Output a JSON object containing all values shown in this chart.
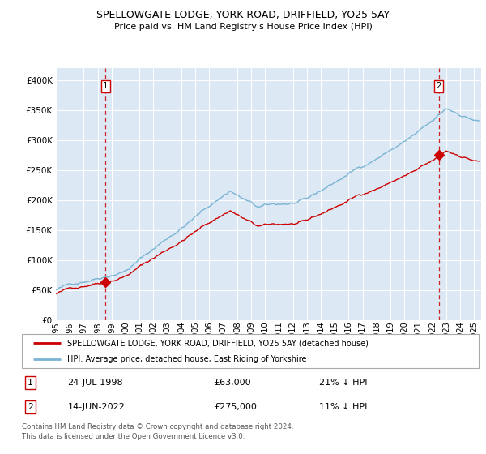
{
  "title": "SPELLOWGATE LODGE, YORK ROAD, DRIFFIELD, YO25 5AY",
  "subtitle": "Price paid vs. HM Land Registry's House Price Index (HPI)",
  "legend_line1": "SPELLOWGATE LODGE, YORK ROAD, DRIFFIELD, YO25 5AY (detached house)",
  "legend_line2": "HPI: Average price, detached house, East Riding of Yorkshire",
  "footnote": "Contains HM Land Registry data © Crown copyright and database right 2024.\nThis data is licensed under the Open Government Licence v3.0.",
  "sale1_date": "24-JUL-1998",
  "sale1_price": 63000,
  "sale1_hpi_diff": "21% ↓ HPI",
  "sale2_date": "14-JUN-2022",
  "sale2_price": 275000,
  "sale2_hpi_diff": "11% ↓ HPI",
  "sale1_x": 1998.56,
  "sale2_x": 2022.45,
  "hpi_color": "#7ab3d4",
  "price_color": "#cc0000",
  "bg_color": "#dce9f5",
  "grid_color": "#ffffff",
  "ylim": [
    0,
    420000
  ],
  "xlim": [
    1995.0,
    2025.5
  ],
  "yticks": [
    0,
    50000,
    100000,
    150000,
    200000,
    250000,
    300000,
    350000,
    400000
  ],
  "ytick_labels": [
    "£0",
    "£50K",
    "£100K",
    "£150K",
    "£200K",
    "£250K",
    "£300K",
    "£350K",
    "£400K"
  ],
  "xticks": [
    1995,
    1996,
    1997,
    1998,
    1999,
    2000,
    2001,
    2002,
    2003,
    2004,
    2005,
    2006,
    2007,
    2008,
    2009,
    2010,
    2011,
    2012,
    2013,
    2014,
    2015,
    2016,
    2017,
    2018,
    2019,
    2020,
    2021,
    2022,
    2023,
    2024,
    2025
  ]
}
